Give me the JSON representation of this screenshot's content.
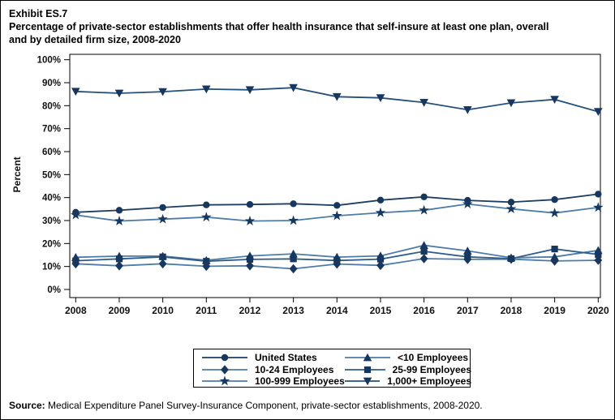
{
  "header": {
    "exhibit": "Exhibit ES.7",
    "title_line1": "Percentage of private-sector establishments that offer health insurance that self-insure at least one plan, overall",
    "title_line2": "and by detailed firm size, 2008-2020"
  },
  "chart_data": {
    "type": "line",
    "title": "Percentage of private-sector establishments that offer health insurance that self-insure at least one plan, overall and by detailed firm size, 2008-2020",
    "xlabel": "",
    "ylabel": "Percent",
    "ylim": [
      0,
      100
    ],
    "y_ticks": [
      "0%",
      "10%",
      "20%",
      "30%",
      "40%",
      "50%",
      "60%",
      "70%",
      "80%",
      "90%",
      "100%"
    ],
    "years": [
      "2008",
      "2009",
      "2010",
      "2011",
      "2012",
      "2013",
      "2014",
      "2015",
      "2016",
      "2017",
      "2018",
      "2019",
      "2020"
    ],
    "grid": false,
    "legend_position": "bottom-center",
    "marker_color": "#17375e",
    "series": [
      {
        "name": "United States",
        "marker": "circle",
        "line_color": "#1b3e61",
        "values": [
          33.6,
          34.5,
          35.7,
          36.8,
          37.0,
          37.3,
          36.6,
          38.9,
          40.3,
          38.8,
          38.0,
          39.1,
          41.5
        ]
      },
      {
        "name": "<10 Employees",
        "marker": "triangle-up",
        "line_color": "#4e7ca8",
        "values": [
          14.0,
          14.5,
          14.5,
          12.7,
          14.6,
          15.5,
          14.1,
          14.6,
          19.2,
          16.8,
          13.8,
          14.2,
          17.0
        ]
      },
      {
        "name": "10-24 Employees",
        "marker": "diamond",
        "line_color": "#4e7ca8",
        "values": [
          11.2,
          10.3,
          11.2,
          10.1,
          10.3,
          9.0,
          11.1,
          10.5,
          13.4,
          13.1,
          13.2,
          12.4,
          12.7
        ]
      },
      {
        "name": "25-99 Employees",
        "marker": "square",
        "line_color": "#2f5c88",
        "values": [
          12.5,
          13.3,
          14.2,
          12.3,
          13.1,
          13.3,
          12.6,
          13.2,
          16.6,
          14.2,
          13.4,
          17.6,
          15.2
        ]
      },
      {
        "name": "100-999 Employees",
        "marker": "star",
        "line_color": "#4e7ca8",
        "values": [
          32.4,
          29.8,
          30.6,
          31.5,
          29.8,
          30.0,
          32.1,
          33.4,
          34.5,
          37.2,
          35.1,
          33.3,
          35.7
        ]
      },
      {
        "name": "1,000+ Employees",
        "marker": "triangle-down",
        "line_color": "#24507a",
        "values": [
          86.2,
          85.4,
          86.1,
          87.2,
          86.9,
          87.8,
          83.9,
          83.4,
          81.4,
          78.2,
          81.2,
          82.7,
          77.4
        ]
      }
    ]
  },
  "source": {
    "label": "Source:",
    "text": " Medical Expenditure Panel Survey-Insurance Component, private-sector establishments, 2008-2020."
  }
}
